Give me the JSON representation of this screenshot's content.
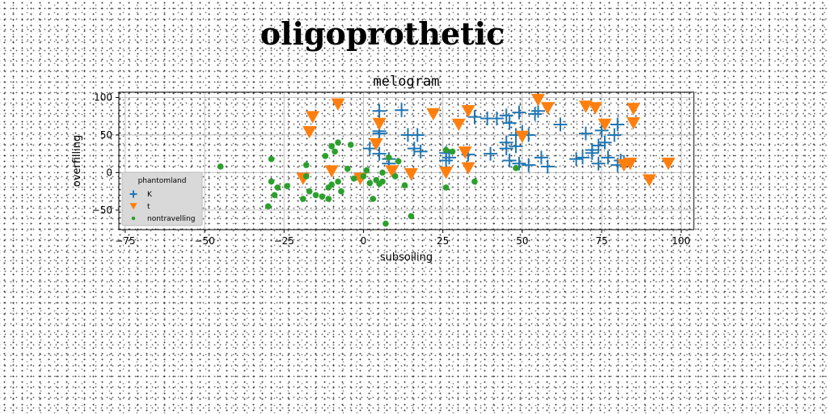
{
  "figure": {
    "suptitle": "oligoprothetic"
  },
  "chart_data": {
    "type": "scatter",
    "title": "melogram",
    "xlabel": "subsoiling",
    "ylabel": "overfilling",
    "xlim": [
      -77,
      104
    ],
    "ylim": [
      -76,
      107
    ],
    "xticks": [
      -75,
      -50,
      -25,
      0,
      25,
      50,
      75,
      100
    ],
    "yticks": [
      -50,
      0,
      50,
      100
    ],
    "xtick_labels": [
      "−75",
      "−50",
      "−25",
      "0",
      "25",
      "50",
      "75",
      "100"
    ],
    "ytick_labels": [
      "−50",
      "0",
      "50",
      "100"
    ],
    "grid": true,
    "legend": {
      "title": "phantomland",
      "position": "lower-left"
    },
    "series": [
      {
        "name": "K",
        "marker": "plus",
        "color": "#1f77b4",
        "points": [
          [
            5,
            82
          ],
          [
            12,
            83
          ],
          [
            5,
            55
          ],
          [
            5,
            52
          ],
          [
            2,
            32
          ],
          [
            5,
            25
          ],
          [
            8,
            18
          ],
          [
            8,
            12
          ],
          [
            14,
            50
          ],
          [
            17,
            50
          ],
          [
            16,
            32
          ],
          [
            18,
            28
          ],
          [
            26,
            16
          ],
          [
            26,
            26
          ],
          [
            27,
            20
          ],
          [
            33,
            24
          ],
          [
            39,
            72
          ],
          [
            35,
            74
          ],
          [
            45,
            76
          ],
          [
            42,
            72
          ],
          [
            46,
            66
          ],
          [
            49,
            80
          ],
          [
            48,
            50
          ],
          [
            50,
            54
          ],
          [
            55,
            82
          ],
          [
            54,
            78
          ],
          [
            52,
            50
          ],
          [
            45,
            40
          ],
          [
            45,
            32
          ],
          [
            48,
            35
          ],
          [
            40,
            25
          ],
          [
            46,
            16
          ],
          [
            49,
            12
          ],
          [
            52,
            10
          ],
          [
            56,
            20
          ],
          [
            58,
            8
          ],
          [
            62,
            64
          ],
          [
            67,
            18
          ],
          [
            69,
            20
          ],
          [
            70,
            52
          ],
          [
            72,
            30
          ],
          [
            72,
            26
          ],
          [
            74,
            36
          ],
          [
            75,
            56
          ],
          [
            76,
            40
          ],
          [
            79,
            50
          ],
          [
            80,
            64
          ],
          [
            81,
            16
          ],
          [
            80,
            10
          ],
          [
            74,
            12
          ],
          [
            77,
            20
          ],
          [
            82,
            14
          ]
        ]
      },
      {
        "name": "t",
        "marker": "triangle-down",
        "color": "#ff7f0e",
        "points": [
          [
            -16,
            74
          ],
          [
            -17,
            54
          ],
          [
            -8,
            91
          ],
          [
            -10,
            2
          ],
          [
            -19,
            -8
          ],
          [
            -1,
            -8
          ],
          [
            4,
            38
          ],
          [
            5,
            65
          ],
          [
            9,
            2
          ],
          [
            15,
            -2
          ],
          [
            22,
            78
          ],
          [
            30,
            64
          ],
          [
            33,
            82
          ],
          [
            32,
            27
          ],
          [
            33,
            6
          ],
          [
            26,
            0
          ],
          [
            50,
            48
          ],
          [
            55,
            97
          ],
          [
            58,
            86
          ],
          [
            70,
            88
          ],
          [
            73,
            86
          ],
          [
            76,
            64
          ],
          [
            85,
            85
          ],
          [
            85,
            66
          ],
          [
            84,
            12
          ],
          [
            82,
            10
          ],
          [
            90,
            -10
          ],
          [
            96,
            12
          ]
        ]
      },
      {
        "name": "nontravelling",
        "marker": "circle",
        "color": "#2ca02c",
        "points": [
          [
            -45,
            8
          ],
          [
            -29,
            18
          ],
          [
            -29,
            -12
          ],
          [
            -30,
            -45
          ],
          [
            -28,
            -30
          ],
          [
            -27,
            -20
          ],
          [
            -24,
            -18
          ],
          [
            -18,
            -5
          ],
          [
            -18,
            10
          ],
          [
            -19,
            -35
          ],
          [
            -17,
            -25
          ],
          [
            -15,
            -30
          ],
          [
            -13,
            -32
          ],
          [
            -12,
            22
          ],
          [
            -11,
            -20
          ],
          [
            -10,
            -16
          ],
          [
            -9,
            28
          ],
          [
            -10,
            35
          ],
          [
            -8,
            40
          ],
          [
            -8,
            -12
          ],
          [
            -7,
            -25
          ],
          [
            -11,
            -35
          ],
          [
            -5,
            5
          ],
          [
            -4,
            37
          ],
          [
            -3,
            -8
          ],
          [
            0,
            -5
          ],
          [
            1,
            3
          ],
          [
            2,
            -14
          ],
          [
            3,
            -35
          ],
          [
            4,
            -10
          ],
          [
            5,
            -15
          ],
          [
            6,
            -12
          ],
          [
            6,
            0
          ],
          [
            7,
            -68
          ],
          [
            8,
            20
          ],
          [
            10,
            -5
          ],
          [
            11,
            15
          ],
          [
            13,
            -17
          ],
          [
            15,
            -58
          ],
          [
            26,
            -20
          ],
          [
            26,
            30
          ],
          [
            28,
            28
          ],
          [
            35,
            -12
          ],
          [
            48,
            6
          ]
        ]
      }
    ]
  }
}
